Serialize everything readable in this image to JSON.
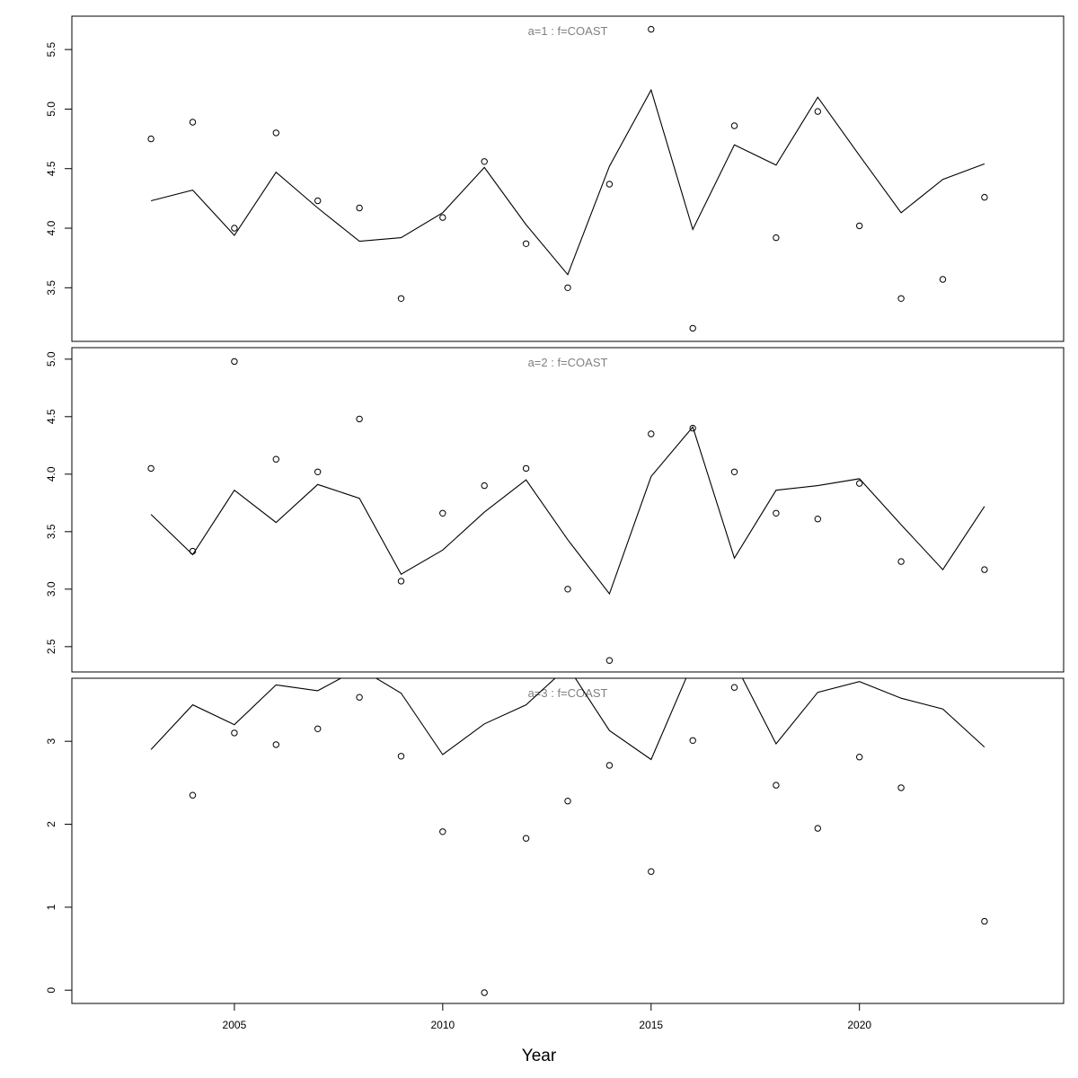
{
  "chart_data": {
    "type": "line",
    "xlabel": "Year",
    "x_ticks": [
      2005,
      2010,
      2015,
      2020
    ],
    "xlim": [
      2001.1,
      2024.9
    ],
    "line_color": "#000000",
    "point_color": "#000000",
    "title_color": "#808080",
    "grid": false,
    "legend": "none",
    "panels": [
      {
        "title": "a=1  :  f=COAST",
        "ylim": [
          3.05,
          5.78
        ],
        "y_ticks": [
          3.5,
          4.0,
          4.5,
          5.0,
          5.5
        ],
        "y_tick_labels": [
          "3.5",
          "4.0",
          "4.5",
          "5.0",
          "5.5"
        ],
        "series": [
          {
            "kind": "observed",
            "style": "points",
            "x": [
              2003,
              2004,
              2005,
              2006,
              2007,
              2008,
              2009,
              2010,
              2011,
              2012,
              2013,
              2014,
              2015,
              2016,
              2017,
              2018,
              2019,
              2020,
              2021,
              2022,
              2023
            ],
            "values": [
              4.75,
              4.89,
              4.0,
              4.8,
              4.23,
              4.17,
              3.41,
              4.09,
              4.56,
              3.87,
              3.5,
              4.37,
              5.67,
              3.16,
              4.86,
              3.92,
              4.98,
              4.02,
              3.41,
              3.57,
              4.26
            ]
          },
          {
            "kind": "fitted",
            "style": "line",
            "x": [
              2003,
              2004,
              2005,
              2006,
              2007,
              2008,
              2009,
              2010,
              2011,
              2012,
              2013,
              2014,
              2015,
              2016,
              2017,
              2018,
              2019,
              2020,
              2021,
              2022,
              2023
            ],
            "values": [
              4.23,
              4.32,
              3.94,
              4.47,
              4.17,
              3.89,
              3.92,
              4.13,
              4.51,
              4.03,
              3.61,
              4.52,
              5.16,
              3.99,
              4.7,
              4.53,
              5.1,
              4.61,
              4.13,
              4.41,
              4.54
            ]
          }
        ]
      },
      {
        "title": "a=2  :  f=COAST",
        "ylim": [
          2.28,
          5.1
        ],
        "y_ticks": [
          2.5,
          3.0,
          3.5,
          4.0,
          4.5,
          5.0
        ],
        "y_tick_labels": [
          "2.5",
          "3.0",
          "3.5",
          "4.0",
          "4.5",
          "5.0"
        ],
        "series": [
          {
            "kind": "observed",
            "style": "points",
            "x": [
              2003,
              2004,
              2005,
              2006,
              2007,
              2008,
              2009,
              2010,
              2011,
              2012,
              2013,
              2014,
              2015,
              2016,
              2017,
              2018,
              2019,
              2020,
              2021,
              2022,
              2023
            ],
            "values": [
              4.05,
              3.33,
              4.98,
              4.13,
              4.02,
              4.48,
              3.07,
              3.66,
              3.9,
              4.05,
              3.0,
              2.38,
              4.35,
              4.4,
              4.02,
              3.66,
              3.61,
              3.92,
              3.24,
              null,
              3.17
            ]
          },
          {
            "kind": "fitted",
            "style": "line",
            "x": [
              2003,
              2004,
              2005,
              2006,
              2007,
              2008,
              2009,
              2010,
              2011,
              2012,
              2013,
              2014,
              2015,
              2016,
              2017,
              2018,
              2019,
              2020,
              2021,
              2022,
              2023
            ],
            "values": [
              3.65,
              3.3,
              3.86,
              3.58,
              3.91,
              3.79,
              3.13,
              3.34,
              3.67,
              3.95,
              3.43,
              2.96,
              3.98,
              4.41,
              3.27,
              3.86,
              3.9,
              3.96,
              3.56,
              3.17,
              3.72
            ]
          }
        ]
      },
      {
        "title": "a=3  :  f=COAST",
        "ylim": [
          -0.16,
          3.76
        ],
        "y_ticks": [
          0,
          1,
          2,
          3
        ],
        "y_tick_labels": [
          "0",
          "1",
          "2",
          "3"
        ],
        "series": [
          {
            "kind": "observed",
            "style": "points",
            "x": [
              2003,
              2004,
              2005,
              2006,
              2007,
              2008,
              2009,
              2010,
              2011,
              2012,
              2013,
              2014,
              2015,
              2016,
              2017,
              2018,
              2019,
              2020,
              2021,
              2022,
              2023
            ],
            "values": [
              null,
              2.35,
              3.1,
              2.96,
              3.15,
              3.53,
              2.82,
              1.91,
              -0.03,
              1.83,
              2.28,
              2.71,
              1.43,
              3.01,
              3.65,
              2.47,
              1.95,
              2.81,
              2.44,
              null,
              0.83
            ]
          },
          {
            "kind": "fitted",
            "style": "line",
            "x": [
              2003,
              2004,
              2005,
              2006,
              2007,
              2008,
              2009,
              2010,
              2011,
              2012,
              2013,
              2014,
              2015,
              2016,
              2017,
              2018,
              2019,
              2020,
              2021,
              2022,
              2023
            ],
            "values": [
              2.9,
              3.44,
              3.2,
              3.68,
              3.61,
              3.88,
              3.58,
              2.84,
              3.21,
              3.44,
              3.9,
              3.13,
              2.78,
              3.95,
              3.95,
              2.97,
              3.59,
              3.72,
              3.52,
              3.39,
              2.93
            ]
          }
        ]
      }
    ]
  }
}
